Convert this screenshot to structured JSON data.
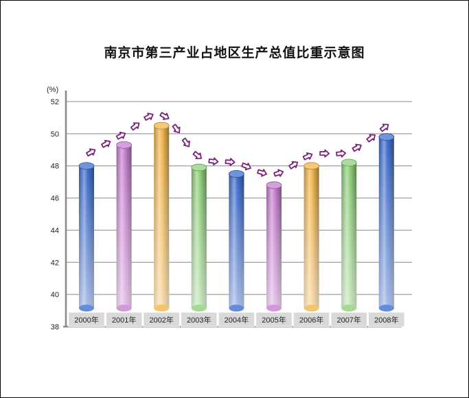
{
  "chart_data": {
    "type": "bar",
    "title": "南京市第三产业占地区生产总值比重示意图",
    "ylabel": "(%)",
    "categories": [
      "2000年",
      "2001年",
      "2002年",
      "2003年",
      "2004年",
      "2005年",
      "2006年",
      "2007年",
      "2008年"
    ],
    "values": [
      48.0,
      49.3,
      50.5,
      47.9,
      47.5,
      46.8,
      48.0,
      48.2,
      49.8
    ],
    "ylim": [
      38,
      52
    ],
    "yticks": [
      38,
      40,
      42,
      44,
      46,
      48,
      50,
      52
    ],
    "grid": true,
    "legend": "none",
    "trend_arrows": true,
    "colors": {
      "bars": [
        "#3f6fd0",
        "#c77fd0",
        "#f2b54a",
        "#8fd07a",
        "#3f6fd0",
        "#c77fd0",
        "#f2b54a",
        "#8fd07a",
        "#3f6fd0"
      ],
      "arrow": "#7a1f7a",
      "grid": "#888888",
      "category_strip": "#d9d9d9"
    }
  }
}
